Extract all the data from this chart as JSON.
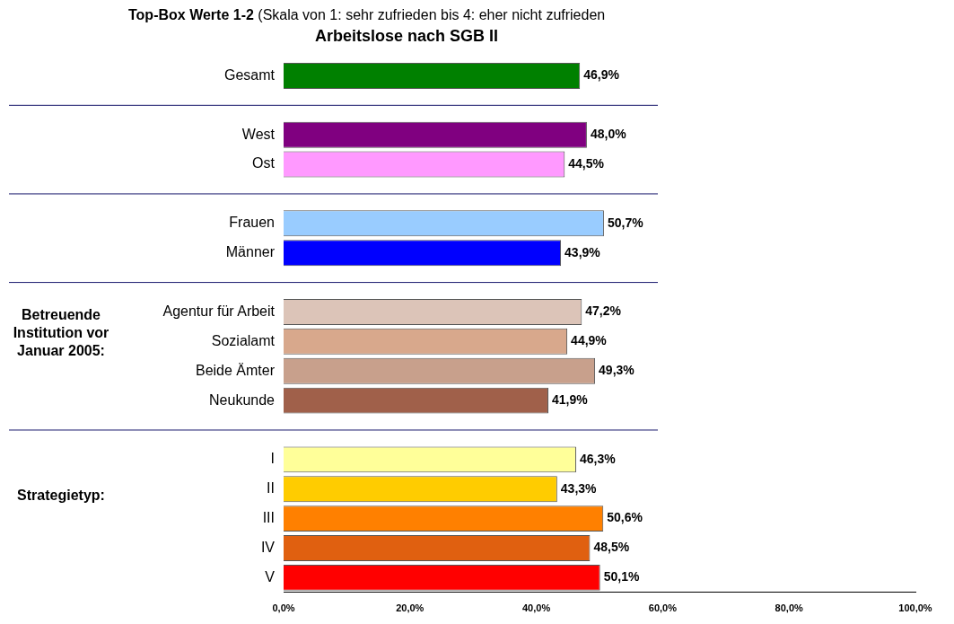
{
  "chart_data": {
    "type": "bar",
    "orientation": "horizontal",
    "title": "Top-Box Werte 1-2 (Skala von 1: sehr zufrieden bis 4: eher nicht zufrieden",
    "subtitle": "Arbeitslose nach SGB II",
    "categories": [
      "Gesamt",
      null,
      "West",
      "Ost",
      null,
      "Frauen",
      "Männer",
      null,
      "Agentur für Arbeit",
      "Sozialamt",
      "Beide Ämter",
      "Neukunde",
      null,
      "I",
      "II",
      "III",
      "IV",
      "V"
    ],
    "values": [
      46.9,
      null,
      48.0,
      44.5,
      null,
      50.7,
      43.9,
      null,
      47.2,
      44.9,
      49.3,
      41.9,
      null,
      46.3,
      43.3,
      50.6,
      48.5,
      50.1
    ],
    "colors": [
      "#008000",
      null,
      "#800080",
      "#ff99ff",
      null,
      "#99ccff",
      "#0000ff",
      null,
      "#dcc4b8",
      "#d8a88c",
      "#c8a08c",
      "#a0604a",
      null,
      "#ffff99",
      "#ffcc00",
      "#ff8000",
      "#e06010",
      "#ff0000"
    ],
    "value_labels": [
      "46,9%",
      null,
      "48,0%",
      "44,5%",
      null,
      "50,7%",
      "43,9%",
      null,
      "47,2%",
      "44,9%",
      "49,3%",
      "41,9%",
      null,
      "46,3%",
      "43,3%",
      "50,6%",
      "48,5%",
      "50,1%"
    ],
    "xlim": [
      0,
      100
    ],
    "xticks": [
      {
        "value": 0,
        "label": "0,0%"
      },
      {
        "value": 20,
        "label": "20,0%"
      },
      {
        "value": 40,
        "label": "40,0%"
      },
      {
        "value": 60,
        "label": "60,0%"
      },
      {
        "value": 80,
        "label": "80,0%"
      },
      {
        "value": 100,
        "label": "100,0%"
      }
    ],
    "annotations": [
      "Betreuende\nInstitution vor\nJanuar 2005:",
      "Strategietyp:"
    ],
    "grid": false,
    "legend": false
  }
}
